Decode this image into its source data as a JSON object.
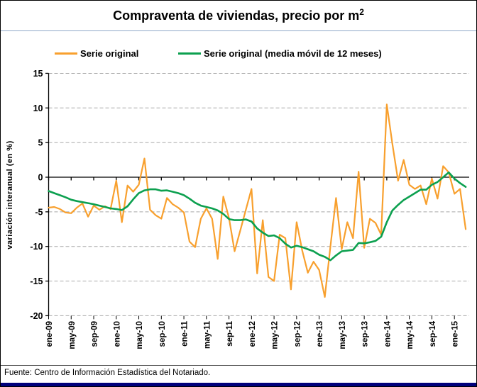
{
  "title": {
    "main": "Compraventa de viviendas, precio por m",
    "sup": "2"
  },
  "source": "Fuente: Centro de Información Estadística del Notariado.",
  "colors": {
    "serie_original": "#F8A02E",
    "media_movil": "#0CA04F",
    "title_rule": "#8fa8c8",
    "bottom_bar": "#00007B",
    "gridline": "#A8A8A8",
    "axis": "#000000"
  },
  "chart_data": {
    "type": "line",
    "title": "Compraventa de viviendas, precio por m2",
    "xlabel": "",
    "ylabel": "variación interanual  (en %)",
    "ylim": [
      -20,
      15
    ],
    "yticks": [
      15,
      10,
      5,
      0,
      -5,
      -10,
      -15,
      -20
    ],
    "grid": "horizontal-dashed",
    "legend_position": "top",
    "x_tick_labels": [
      "ene-09",
      "may-09",
      "sep-09",
      "ene-10",
      "may-10",
      "sep-10",
      "ene-11",
      "may-11",
      "sep-11",
      "ene-12",
      "may-12",
      "sep-12",
      "ene-13",
      "may-13",
      "sep-13",
      "ene-14",
      "may-14",
      "sep-14",
      "ene-15"
    ],
    "x": [
      "ene-09",
      "feb-09",
      "mar-09",
      "abr-09",
      "may-09",
      "jun-09",
      "jul-09",
      "ago-09",
      "sep-09",
      "oct-09",
      "nov-09",
      "dic-09",
      "ene-10",
      "feb-10",
      "mar-10",
      "abr-10",
      "may-10",
      "jun-10",
      "jul-10",
      "ago-10",
      "sep-10",
      "oct-10",
      "nov-10",
      "dic-10",
      "ene-11",
      "feb-11",
      "mar-11",
      "abr-11",
      "may-11",
      "jun-11",
      "jul-11",
      "ago-11",
      "sep-11",
      "oct-11",
      "nov-11",
      "dic-11",
      "ene-12",
      "feb-12",
      "mar-12",
      "abr-12",
      "may-12",
      "jun-12",
      "jul-12",
      "ago-12",
      "sep-12",
      "oct-12",
      "nov-12",
      "dic-12",
      "ene-13",
      "feb-13",
      "mar-13",
      "abr-13",
      "may-13",
      "jun-13",
      "jul-13",
      "ago-13",
      "sep-13",
      "oct-13",
      "nov-13",
      "dic-13",
      "ene-14",
      "feb-14",
      "mar-14",
      "abr-14",
      "may-14",
      "jun-14",
      "jul-14",
      "ago-14",
      "sep-14",
      "oct-14",
      "nov-14",
      "dic-14",
      "ene-15",
      "feb-15",
      "mar-15"
    ],
    "series": [
      {
        "name": "Serie original",
        "color": "#F8A02E",
        "values": [
          -4.4,
          -4.3,
          -4.6,
          -5.1,
          -5.2,
          -4.4,
          -3.8,
          -5.7,
          -4.1,
          -4.7,
          -4.2,
          -4.6,
          -0.5,
          -6.5,
          -1.2,
          -2.1,
          -1.1,
          2.7,
          -4.7,
          -5.5,
          -6.0,
          -3.0,
          -3.9,
          -4.4,
          -5.1,
          -9.3,
          -10.1,
          -6.0,
          -4.5,
          -6.0,
          -11.8,
          -2.8,
          -5.9,
          -10.7,
          -7.7,
          -4.7,
          -1.7,
          -13.9,
          -6.2,
          -14.4,
          -15.0,
          -8.3,
          -8.8,
          -16.2,
          -6.5,
          -10.6,
          -13.8,
          -12.2,
          -13.4,
          -17.3,
          -10.0,
          -3.0,
          -10.4,
          -6.5,
          -8.8,
          0.8,
          -10.2,
          -6.0,
          -6.6,
          -8.3,
          10.5,
          4.8,
          -0.5,
          2.5,
          -1.1,
          -1.7,
          -1.2,
          -3.9,
          -0.2,
          -3.1,
          1.6,
          0.7,
          -2.4,
          -1.7,
          -7.5
        ]
      },
      {
        "name": "Serie original (media móvil de 12 meses)",
        "color": "#0CA04F",
        "values": [
          -2.0,
          -2.3,
          -2.6,
          -2.9,
          -3.25,
          -3.45,
          -3.6,
          -3.75,
          -3.9,
          -4.1,
          -4.3,
          -4.5,
          -4.6,
          -4.75,
          -4.2,
          -3.2,
          -2.3,
          -1.9,
          -1.75,
          -1.75,
          -1.95,
          -1.9,
          -2.1,
          -2.3,
          -2.6,
          -3.1,
          -3.7,
          -4.1,
          -4.3,
          -4.5,
          -4.8,
          -5.3,
          -6.05,
          -6.2,
          -6.2,
          -6.1,
          -6.4,
          -7.4,
          -8.0,
          -8.5,
          -8.4,
          -8.8,
          -9.6,
          -10.15,
          -9.9,
          -10.1,
          -10.4,
          -10.7,
          -11.2,
          -11.5,
          -12.0,
          -11.3,
          -10.7,
          -10.6,
          -10.5,
          -9.5,
          -9.55,
          -9.4,
          -9.2,
          -8.6,
          -6.5,
          -4.8,
          -4.0,
          -3.3,
          -2.8,
          -2.3,
          -1.8,
          -1.8,
          -1.1,
          -0.7,
          0.0,
          0.7,
          -0.2,
          -0.85,
          -1.4
        ]
      }
    ]
  }
}
